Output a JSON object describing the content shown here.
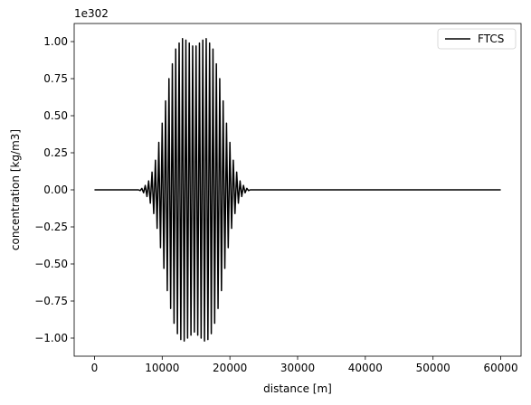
{
  "chart_data": {
    "type": "line",
    "xlabel": "distance [m]",
    "ylabel": "concentration [kg/m3]",
    "offset_label": "1e302",
    "legend": "upper right",
    "grid": false,
    "xlim": [
      -3000,
      63000
    ],
    "xticks": [
      0,
      10000,
      20000,
      30000,
      40000,
      50000,
      60000
    ],
    "ylim": [
      -1.122,
      1.122
    ],
    "yticks": [
      {
        "value": -1,
        "label": "−1.00"
      },
      {
        "value": -0.75,
        "label": "−0.75"
      },
      {
        "value": -0.5,
        "label": "−0.50"
      },
      {
        "value": -0.25,
        "label": "−0.25"
      },
      {
        "value": 0,
        "label": "0.00"
      },
      {
        "value": 0.25,
        "label": "0.25"
      },
      {
        "value": 0.5,
        "label": "0.50"
      },
      {
        "value": 0.75,
        "label": "0.75"
      },
      {
        "value": 1,
        "label": "1.00"
      }
    ],
    "x": [
      0,
      6500,
      6750,
      7000,
      7250,
      7500,
      7750,
      8000,
      8250,
      8500,
      8750,
      9000,
      9250,
      9500,
      9750,
      10000,
      10250,
      10500,
      10750,
      11000,
      11250,
      11500,
      11750,
      12000,
      12250,
      12500,
      12750,
      13000,
      13250,
      13500,
      13750,
      14000,
      14250,
      14500,
      14750,
      15000,
      15250,
      15500,
      15750,
      16000,
      16250,
      16500,
      16750,
      17000,
      17250,
      17500,
      17750,
      18000,
      18250,
      18500,
      18750,
      19000,
      19250,
      19500,
      19750,
      20000,
      20250,
      20500,
      20750,
      21000,
      21250,
      21500,
      21750,
      22000,
      22250,
      22500,
      22750,
      23000,
      60000
    ],
    "series": [
      {
        "name": "FTCS",
        "color": "#000000",
        "values": [
          0,
          0,
          -0.005,
          0.01,
          -0.02,
          0.03,
          -0.045,
          0.06,
          -0.09,
          0.12,
          -0.16,
          0.2,
          -0.26,
          0.32,
          -0.39,
          0.45,
          -0.53,
          0.6,
          -0.68,
          0.75,
          -0.8,
          0.85,
          -0.9,
          0.95,
          -0.97,
          0.99,
          -1.01,
          1.02,
          -1.02,
          1.01,
          -1.0,
          0.99,
          -0.98,
          0.97,
          -0.96,
          0.97,
          -0.98,
          0.99,
          -1.0,
          1.01,
          -1.02,
          1.02,
          -1.01,
          0.99,
          -0.97,
          0.95,
          -0.9,
          0.85,
          -0.8,
          0.75,
          -0.68,
          0.6,
          -0.53,
          0.45,
          -0.39,
          0.32,
          -0.26,
          0.2,
          -0.16,
          0.12,
          -0.09,
          0.06,
          -0.045,
          0.03,
          -0.02,
          0.01,
          -0.005,
          0,
          0
        ]
      }
    ]
  }
}
